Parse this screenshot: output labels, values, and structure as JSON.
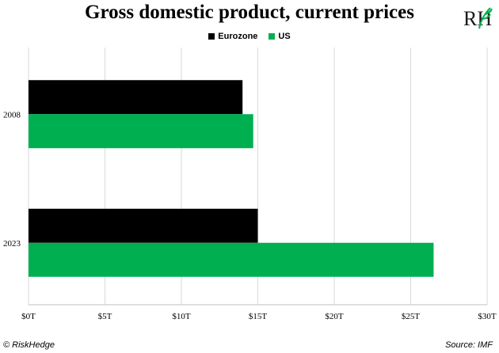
{
  "colors": {
    "Eurozone": "#000000",
    "US": "#00b050",
    "grid": "#d9d9d9"
  },
  "logo": {
    "text": "RH",
    "icon": "leaf-logo-icon"
  },
  "footer": {
    "copyright": "© RiskHedge",
    "source": "Source: IMF"
  },
  "chart_data": {
    "type": "bar",
    "orientation": "horizontal",
    "title": "Gross domestic product, current prices",
    "categories": [
      "2008",
      "2023"
    ],
    "series": [
      {
        "name": "Eurozone",
        "values": [
          14.0,
          15.0
        ]
      },
      {
        "name": "US",
        "values": [
          14.7,
          26.5
        ]
      }
    ],
    "x_ticks": [
      "$0T",
      "$5T",
      "$10T",
      "$15T",
      "$20T",
      "$25T",
      "$30T"
    ],
    "xlim": [
      0,
      30
    ],
    "grid": true,
    "legend": "top-center"
  }
}
